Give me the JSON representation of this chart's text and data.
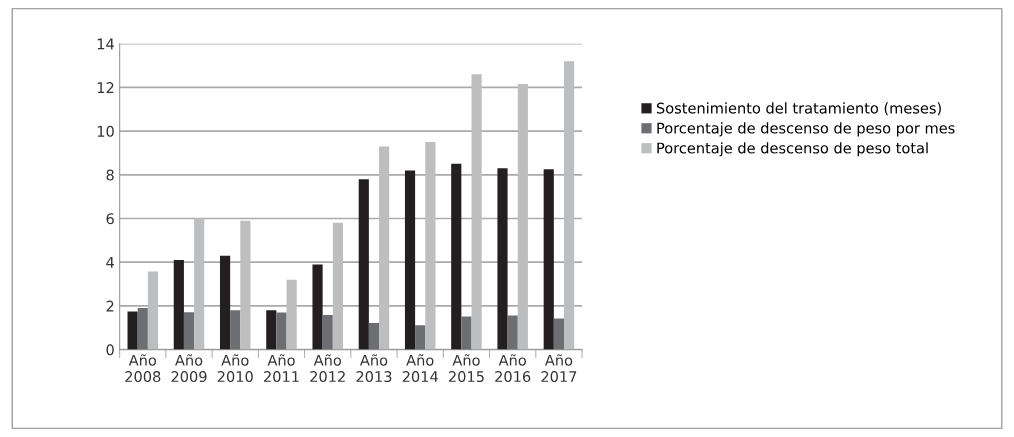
{
  "chart_data": {
    "type": "bar",
    "categories": [
      "Año\n2008",
      "Año\n2009",
      "Año\n2010",
      "Año\n2011",
      "Año\n2012",
      "Año\n2013",
      "Año\n2014",
      "Año\n2015",
      "Año\n2016",
      "Año\n2017"
    ],
    "series": [
      {
        "name": "Sostenimiento del tratamiento (meses)",
        "color": "#231f20",
        "values": [
          1.74,
          4.1,
          4.3,
          1.8,
          3.9,
          7.8,
          8.2,
          8.5,
          8.3,
          8.25
        ]
      },
      {
        "name": "Porcentaje de descenso de peso por mes",
        "color": "#6d6e71",
        "values": [
          1.9,
          1.71,
          1.8,
          1.7,
          1.58,
          1.22,
          1.12,
          1.51,
          1.56,
          1.42
        ]
      },
      {
        "name": "Porcentaje de descenso de peso total",
        "color": "#bcbec0",
        "values": [
          3.57,
          6.0,
          5.9,
          3.2,
          5.8,
          9.3,
          9.5,
          12.6,
          12.15,
          13.2
        ]
      }
    ],
    "ylim": [
      0,
      14
    ],
    "yticks": [
      0,
      2,
      4,
      6,
      8,
      10,
      12,
      14
    ],
    "grid": "y",
    "legend": "right"
  }
}
